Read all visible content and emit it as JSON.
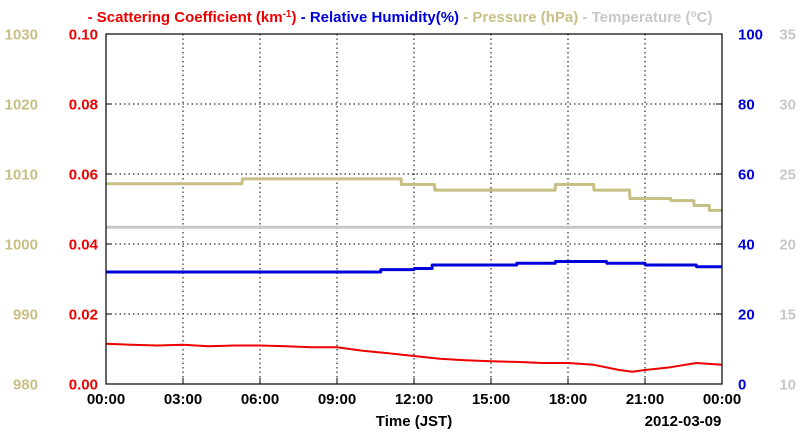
{
  "chart_data": {
    "type": "line",
    "xlabel": "Time (JST)",
    "x_ticks": [
      "00:00",
      "03:00",
      "06:00",
      "09:00",
      "12:00",
      "15:00",
      "18:00",
      "21:00",
      "00:00"
    ],
    "x_range_hours": [
      0,
      24
    ],
    "date_label": "2012-03-09",
    "grid": true,
    "legend_placement": "top",
    "legend": [
      {
        "key": "scat",
        "prefix": "- ",
        "text": "Scattering Coefficient (km",
        "sup": "-1",
        "suffix": ")",
        "color": "#ee0000"
      },
      {
        "key": "rh",
        "prefix": " - ",
        "text": "Relative Humidity(%)",
        "sup": "",
        "suffix": "",
        "color": "#0000dd"
      },
      {
        "key": "pres",
        "prefix": " - ",
        "text": "Pressure (hPa)",
        "sup": "",
        "suffix": "",
        "color": "#c8bf85"
      },
      {
        "key": "temp",
        "prefix": " - ",
        "text": "Temperature (",
        "sup": "o",
        "suffix": "C)",
        "color": "#c8c8c8"
      }
    ],
    "axes": {
      "pressure": {
        "side": "left-outer",
        "range": [
          980,
          1030
        ],
        "ticks": [
          "980",
          "990",
          "1000",
          "1010",
          "1020",
          "1030"
        ],
        "color": "#c8bf85"
      },
      "scattering": {
        "side": "left-inner",
        "range": [
          0,
          0.1
        ],
        "ticks": [
          "0.00",
          "0.02",
          "0.04",
          "0.06",
          "0.08",
          "0.10"
        ],
        "color": "#ee0000"
      },
      "humidity": {
        "side": "right-inner",
        "range": [
          0,
          100
        ],
        "ticks": [
          "0",
          "20",
          "40",
          "60",
          "80",
          "100"
        ],
        "color": "#0000dd"
      },
      "temperature": {
        "side": "right-outer",
        "range": [
          10,
          35
        ],
        "ticks": [
          "10",
          "15",
          "20",
          "25",
          "30",
          "35"
        ],
        "color": "#c8c8c8"
      }
    },
    "series": [
      {
        "name": "Scattering Coefficient (km-1)",
        "axis": "scattering",
        "color": "#ee0000",
        "x": [
          0,
          1,
          2,
          3,
          4,
          5,
          6,
          7,
          8,
          9,
          10,
          11,
          12,
          13,
          14,
          15,
          16,
          17,
          18,
          19,
          20,
          20.5,
          21,
          22,
          23,
          24
        ],
        "y": [
          0.0115,
          0.0112,
          0.011,
          0.0112,
          0.0108,
          0.011,
          0.011,
          0.0108,
          0.0105,
          0.0105,
          0.0095,
          0.0088,
          0.008,
          0.0072,
          0.0068,
          0.0065,
          0.0063,
          0.006,
          0.006,
          0.0055,
          0.004,
          0.0035,
          0.004,
          0.0048,
          0.006,
          0.0055
        ]
      },
      {
        "name": "Relative Humidity(%)",
        "axis": "humidity",
        "color": "#0000dd",
        "x": [
          0,
          10.7,
          10.71,
          12.0,
          12.01,
          12.7,
          12.71,
          16.0,
          16.01,
          17.5,
          17.51,
          19.5,
          19.51,
          21.0,
          21.01,
          23.0,
          23.01,
          24
        ],
        "y": [
          32.0,
          32.0,
          32.7,
          32.7,
          33.0,
          33.0,
          34.0,
          34.0,
          34.5,
          34.5,
          35.0,
          35.0,
          34.5,
          34.5,
          34.0,
          34.0,
          33.5,
          33.5
        ]
      },
      {
        "name": "Pressure (hPa)",
        "axis": "pressure",
        "color": "#c8bf85",
        "x": [
          0,
          5.3,
          5.31,
          11.5,
          11.51,
          12.8,
          12.81,
          17.5,
          17.51,
          19.0,
          19.01,
          20.4,
          20.41,
          22.0,
          22.01,
          22.9,
          22.91,
          23.5,
          23.51,
          24
        ],
        "y": [
          1008.6,
          1008.6,
          1009.3,
          1009.3,
          1008.5,
          1008.5,
          1007.7,
          1007.7,
          1008.5,
          1008.5,
          1007.7,
          1007.7,
          1006.5,
          1006.5,
          1006.2,
          1006.2,
          1005.5,
          1005.5,
          1004.8,
          1004.8
        ]
      },
      {
        "name": "Temperature (C)",
        "axis": "temperature",
        "color": "#c8c8c8",
        "x": [
          0,
          24
        ],
        "y": [
          21.2,
          21.2
        ]
      }
    ]
  }
}
